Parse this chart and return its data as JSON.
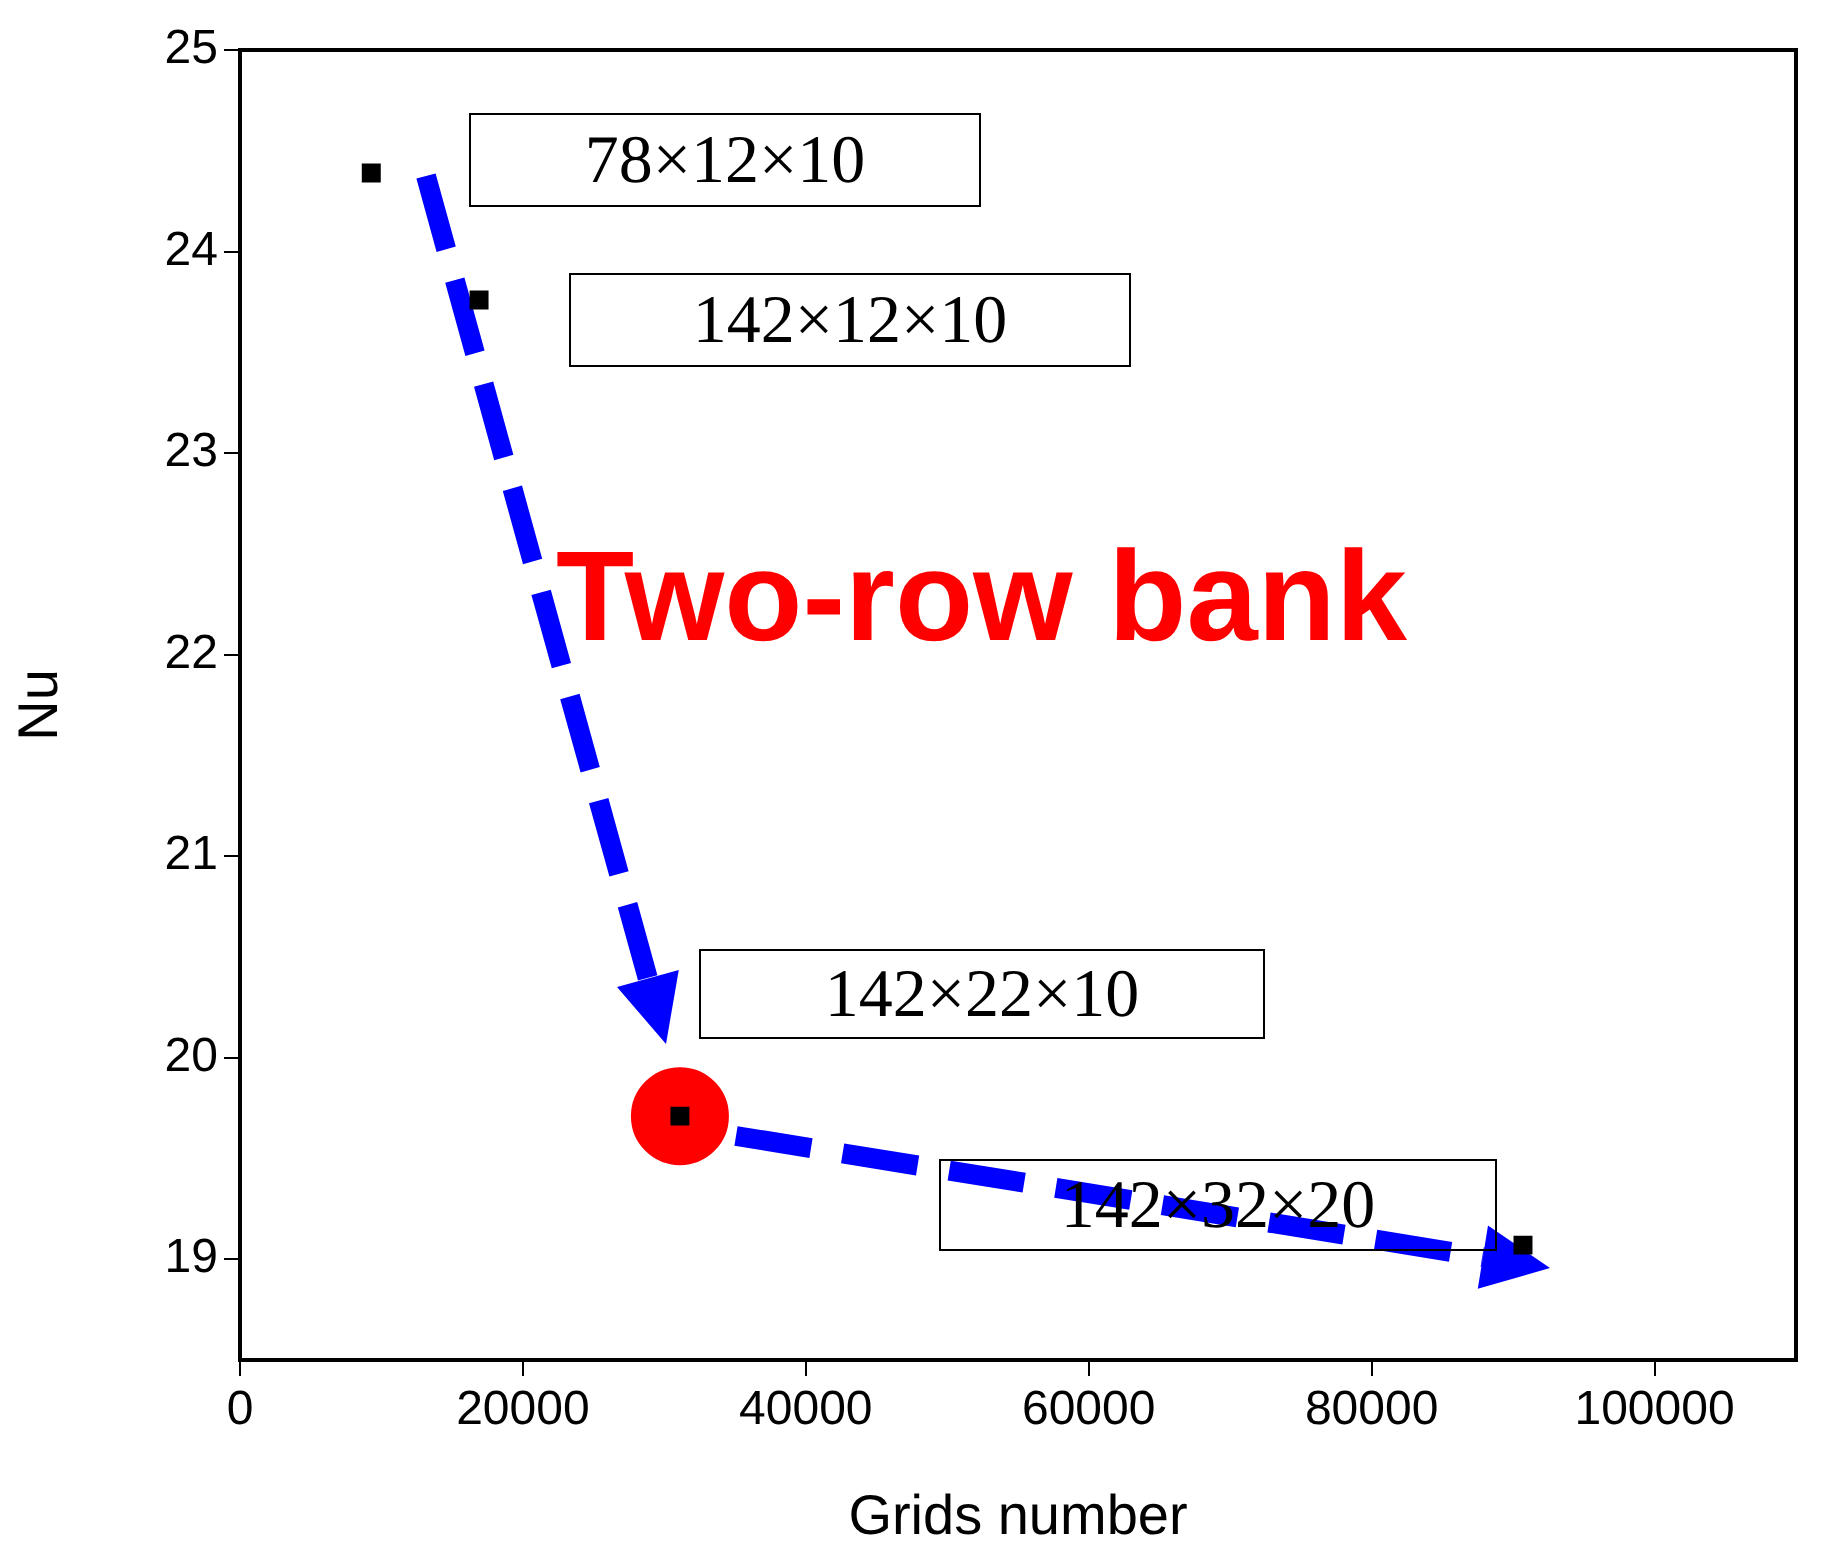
{
  "chart_data": {
    "type": "scatter",
    "xlabel": "Grids number",
    "ylabel": "Nu",
    "x": [
      9280,
      16900,
      31100,
      90700
    ],
    "series": [
      {
        "color": "#000000",
        "values": [
          24.39,
          23.76,
          19.71,
          19.07
        ],
        "marker": "square"
      },
      {
        "type": "scatter",
        "color": "#ff0000",
        "x": [
          31100
        ],
        "values": [
          19.71
        ],
        "marker": "circle"
      }
    ],
    "xlim": [
      0,
      110000
    ],
    "xticks": [
      0,
      20000,
      40000,
      60000,
      80000,
      100000
    ],
    "ylim": [
      18.5,
      25
    ],
    "yticks": [
      19,
      20,
      21,
      22,
      23,
      24,
      25
    ],
    "grid": false,
    "legend": false,
    "annotations": [
      "78×12×10",
      "142×12×10",
      "142×22×10",
      "142×32×20",
      "Two-row bank"
    ]
  }
}
